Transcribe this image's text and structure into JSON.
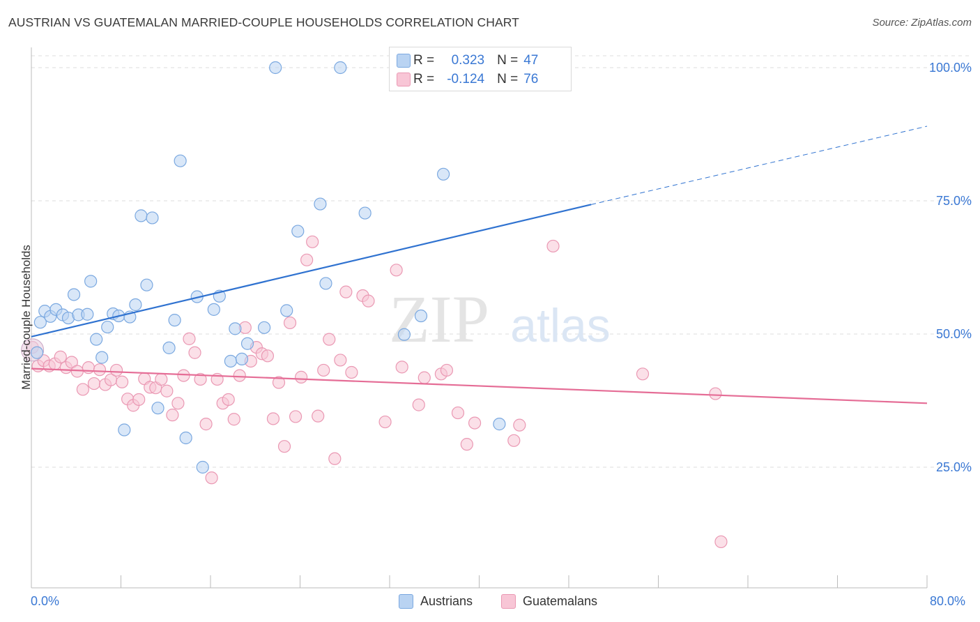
{
  "header": {
    "title": "AUSTRIAN VS GUATEMALAN MARRIED-COUPLE HOUSEHOLDS CORRELATION CHART",
    "source": "Source: ZipAtlas.com"
  },
  "legend": {
    "r_label": "R =",
    "n_label": "N =",
    "rows": [
      {
        "r": "0.323",
        "n": "47"
      },
      {
        "r": "-0.124",
        "n": "76"
      }
    ]
  },
  "bottom_legend": [
    "Austrians",
    "Guatemalans"
  ],
  "watermark": {
    "zip": "ZIP",
    "atlas": "atlas"
  },
  "colors": {
    "blue_fill": "#b9d3f2",
    "blue_stroke": "#7aa8e0",
    "blue_line": "#2f72d0",
    "pink_fill": "#f8c6d6",
    "pink_stroke": "#ea98b3",
    "pink_line": "#e56d96",
    "tick_text": "#3a78d4"
  },
  "chart_data": {
    "type": "scatter",
    "title": "AUSTRIAN VS GUATEMALAN MARRIED-COUPLE HOUSEHOLDS CORRELATION CHART",
    "xlabel": "",
    "ylabel": "Married-couple Households",
    "xlim": [
      0,
      80
    ],
    "ylim": [
      0,
      102
    ],
    "x_tick_labels": [
      "0.0%",
      "80.0%"
    ],
    "y_ticks": [
      25,
      50,
      75,
      100
    ],
    "y_tick_labels": [
      "25.0%",
      "50.0%",
      "75.0%",
      "100.0%"
    ],
    "grid": true,
    "legend_position": "top-center",
    "series": [
      {
        "name": "Austrians",
        "R": 0.323,
        "N": 47,
        "trend": {
          "x0": 0,
          "y0": 49.5,
          "x1": 50,
          "y1": 74.3,
          "dashed_to_x": 80,
          "dashed_to_y": 89
        },
        "points": [
          [
            0.5,
            46.5
          ],
          [
            0.8,
            52.2
          ],
          [
            1.2,
            54.3
          ],
          [
            1.7,
            53.3
          ],
          [
            2.2,
            54.6
          ],
          [
            2.8,
            53.6
          ],
          [
            3.3,
            53.0
          ],
          [
            3.8,
            57.4
          ],
          [
            4.2,
            53.6
          ],
          [
            5.0,
            53.7
          ],
          [
            5.3,
            59.9
          ],
          [
            5.8,
            49.0
          ],
          [
            6.3,
            45.6
          ],
          [
            6.8,
            51.3
          ],
          [
            7.3,
            53.8
          ],
          [
            7.8,
            53.4
          ],
          [
            8.3,
            32.0
          ],
          [
            8.8,
            53.2
          ],
          [
            9.3,
            55.5
          ],
          [
            9.8,
            72.2
          ],
          [
            10.3,
            59.2
          ],
          [
            10.8,
            71.8
          ],
          [
            11.3,
            36.1
          ],
          [
            12.3,
            47.4
          ],
          [
            12.8,
            52.6
          ],
          [
            13.3,
            82.5
          ],
          [
            13.8,
            30.5
          ],
          [
            14.8,
            57.0
          ],
          [
            15.3,
            25.0
          ],
          [
            16.3,
            54.6
          ],
          [
            16.8,
            57.1
          ],
          [
            17.8,
            44.9
          ],
          [
            18.2,
            51.0
          ],
          [
            18.8,
            45.3
          ],
          [
            19.3,
            48.2
          ],
          [
            20.8,
            51.2
          ],
          [
            21.8,
            100.0
          ],
          [
            22.8,
            54.4
          ],
          [
            23.8,
            69.3
          ],
          [
            25.8,
            74.4
          ],
          [
            26.3,
            59.5
          ],
          [
            27.6,
            100.0
          ],
          [
            29.8,
            72.7
          ],
          [
            33.3,
            49.9
          ],
          [
            34.8,
            53.4
          ],
          [
            36.8,
            80.0
          ],
          [
            41.8,
            33.1
          ]
        ]
      },
      {
        "name": "Guatemalans",
        "R": -0.124,
        "N": 76,
        "trend": {
          "x0": 0,
          "y0": 43.5,
          "x1": 80,
          "y1": 37.0
        },
        "points": [
          [
            0.6,
            44.0
          ],
          [
            1.1,
            45.0
          ],
          [
            1.6,
            44.0
          ],
          [
            2.1,
            44.4
          ],
          [
            2.6,
            45.7
          ],
          [
            3.1,
            43.7
          ],
          [
            3.6,
            44.7
          ],
          [
            4.1,
            43.0
          ],
          [
            4.6,
            39.6
          ],
          [
            5.1,
            43.7
          ],
          [
            5.6,
            40.7
          ],
          [
            6.1,
            43.3
          ],
          [
            6.6,
            40.5
          ],
          [
            7.1,
            41.4
          ],
          [
            7.6,
            43.2
          ],
          [
            8.1,
            41.0
          ],
          [
            8.6,
            37.8
          ],
          [
            9.1,
            36.6
          ],
          [
            9.6,
            37.7
          ],
          [
            10.1,
            41.6
          ],
          [
            10.6,
            40.0
          ],
          [
            11.1,
            39.9
          ],
          [
            11.6,
            41.5
          ],
          [
            12.1,
            39.3
          ],
          [
            12.6,
            34.8
          ],
          [
            13.1,
            37.0
          ],
          [
            13.6,
            42.2
          ],
          [
            14.1,
            49.1
          ],
          [
            14.6,
            46.5
          ],
          [
            15.1,
            41.5
          ],
          [
            15.6,
            33.1
          ],
          [
            16.1,
            23.0
          ],
          [
            16.6,
            41.5
          ],
          [
            17.1,
            37.0
          ],
          [
            17.6,
            37.7
          ],
          [
            18.1,
            34.0
          ],
          [
            18.6,
            42.2
          ],
          [
            19.1,
            51.2
          ],
          [
            19.6,
            44.9
          ],
          [
            20.1,
            47.5
          ],
          [
            20.6,
            46.3
          ],
          [
            21.1,
            45.9
          ],
          [
            21.6,
            34.1
          ],
          [
            22.1,
            40.9
          ],
          [
            22.6,
            28.9
          ],
          [
            23.1,
            52.1
          ],
          [
            23.6,
            34.5
          ],
          [
            24.1,
            41.9
          ],
          [
            24.6,
            63.9
          ],
          [
            25.1,
            67.3
          ],
          [
            25.6,
            34.6
          ],
          [
            26.1,
            43.2
          ],
          [
            26.6,
            49.0
          ],
          [
            27.1,
            26.6
          ],
          [
            27.6,
            45.1
          ],
          [
            28.1,
            57.9
          ],
          [
            28.6,
            42.8
          ],
          [
            29.6,
            57.2
          ],
          [
            30.1,
            56.2
          ],
          [
            31.6,
            33.5
          ],
          [
            32.6,
            62.0
          ],
          [
            33.1,
            43.8
          ],
          [
            34.6,
            36.7
          ],
          [
            35.1,
            41.8
          ],
          [
            36.6,
            42.5
          ],
          [
            37.1,
            43.2
          ],
          [
            38.1,
            35.2
          ],
          [
            38.9,
            29.3
          ],
          [
            39.6,
            33.3
          ],
          [
            43.1,
            30.0
          ],
          [
            43.6,
            32.9
          ],
          [
            46.6,
            66.5
          ],
          [
            54.6,
            42.5
          ],
          [
            61.1,
            38.8
          ],
          [
            61.6,
            11.0
          ],
          [
            0.1,
            47.5
          ]
        ]
      }
    ]
  }
}
